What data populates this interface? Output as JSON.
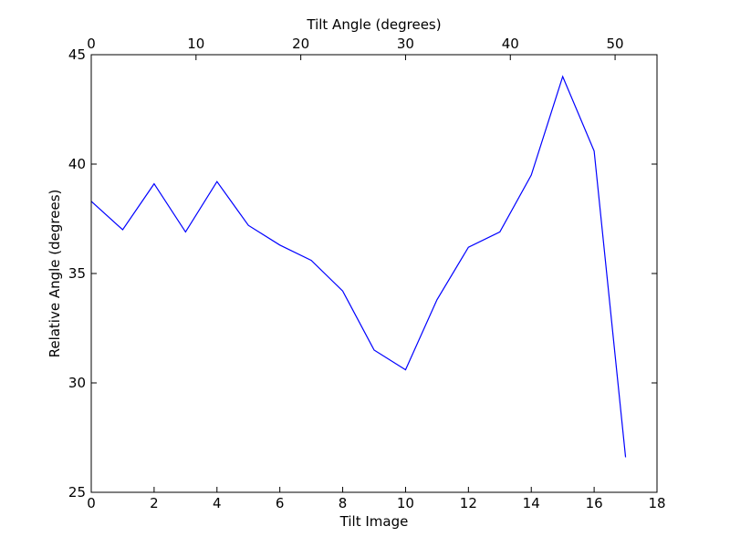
{
  "chart_data": {
    "type": "line",
    "title": "",
    "xlabel": "Tilt Image",
    "ylabel": "Relative Angle (degrees)",
    "secondary_xlabel": "Tilt Angle (degrees)",
    "xlim": [
      0,
      18
    ],
    "ylim": [
      25,
      45
    ],
    "secondary_xlim": [
      0,
      54
    ],
    "x_ticks": [
      "0",
      "2",
      "4",
      "6",
      "8",
      "10",
      "12",
      "14",
      "16",
      "18"
    ],
    "y_ticks": [
      "25",
      "30",
      "35",
      "40",
      "45"
    ],
    "secondary_x_ticks": [
      "0",
      "10",
      "20",
      "30",
      "40",
      "50"
    ],
    "grid": false,
    "line_color": "#0000ff",
    "series": [
      {
        "x": [
          0,
          1,
          2,
          3,
          4,
          5,
          6,
          7,
          8,
          9,
          10,
          11,
          12,
          13,
          14,
          15,
          16,
          17
        ],
        "values": [
          38.3,
          37.0,
          39.1,
          36.9,
          39.2,
          37.2,
          36.3,
          35.6,
          34.2,
          31.5,
          30.6,
          33.8,
          36.2,
          36.9,
          39.5,
          44.0,
          40.6,
          26.6
        ]
      }
    ]
  }
}
